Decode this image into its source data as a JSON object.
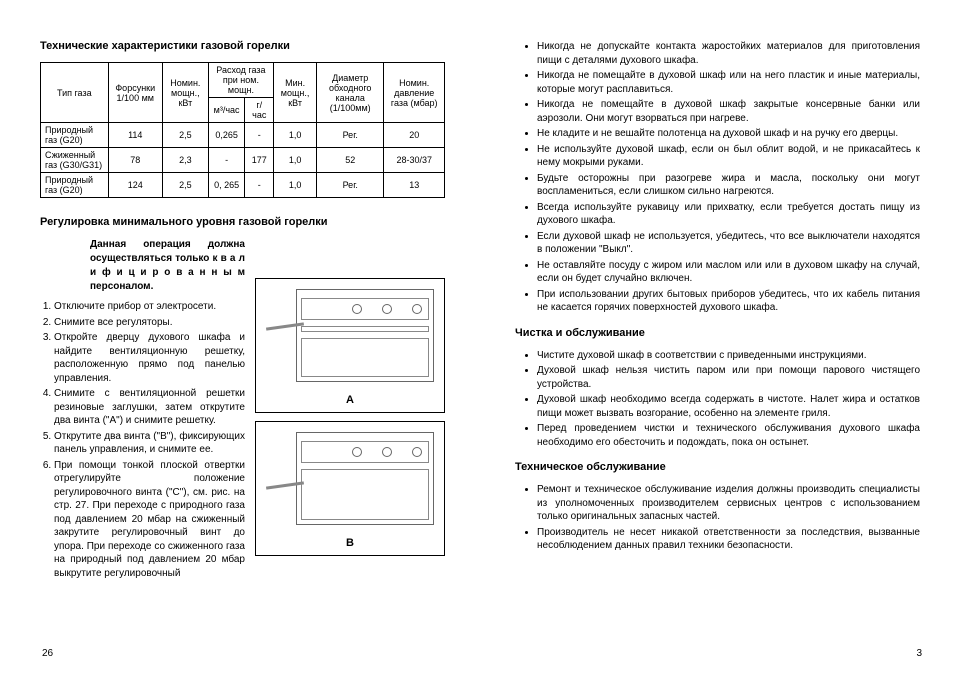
{
  "left": {
    "title1": "Технические характеристики газовой горелки",
    "table": {
      "headers": {
        "gasType": "Тип газа",
        "nozzle": "Форсунки 1/100 мм",
        "nomPower": "Номин. мощн., кВт",
        "consump": "Расход газа при ном. мощн.",
        "consump_m3": "м³/час",
        "consump_g": "г/час",
        "minPower": "Мин. мощн., кВт",
        "bypass": "Диаметр обходного канала (1/100мм)",
        "nomPressure": "Номин. давление газа (мбар)"
      },
      "rows": [
        {
          "gas": "Природный газ (G20)",
          "nozzle": "114",
          "nom": "2,5",
          "m3": "0,265",
          "g": "-",
          "min": "1,0",
          "bypass": "Рег.",
          "press": "20"
        },
        {
          "gas": "Сжиженный газ (G30/G31)",
          "nozzle": "78",
          "nom": "2,3",
          "m3": "-",
          "g": "177",
          "min": "1,0",
          "bypass": "52",
          "press": "28-30/37"
        },
        {
          "gas": "Природный газ (G20)",
          "nozzle": "124",
          "nom": "2,5",
          "m3": "0, 265",
          "g": "-",
          "min": "1,0",
          "bypass": "Рег.",
          "press": "13"
        }
      ]
    },
    "title2": "Регулировка минимального уровня газовой горелки",
    "boldIntro": "Данная операция должна осуществляться только к в а л и ф и ц и р о в а н н ы м персоналом.",
    "steps": [
      "Отключите прибор от электросети.",
      "Снимите все регуляторы.",
      "Откройте дверцу духового шкафа и найдите вентиляционную решетку, расположенную прямо под панелью управления.",
      "Снимите с вентиляционной решетки резиновые заглушки, затем открутите два винта (\"A\") и снимите решетку.",
      "Открутите два винта (\"B\"), фиксирующих панель управления, и снимите ее.",
      "При помощи тонкой плоской отвертки отрегулируйте положение регулировочного винта (\"C\"), см. рис. на стр. 27. При переходе с природного газа под давлением 20 мбар на сжиженный закрутите регулировочный винт до упора. При переходе со сжиженного газа на природный под давлением 20 мбар выкрутите регулировочный"
    ],
    "figA": "A",
    "figB": "B",
    "pageNum": "26"
  },
  "right": {
    "warnings": [
      "Никогда не допускайте контакта жаростойких материалов для приготовления пищи с деталями духового шкафа.",
      "Никогда не помещайте в духовой шкаф или на него пластик и иные материалы, которые могут расплавиться.",
      "Никогда не помещайте в духовой шкаф закрытые консервные банки или аэрозоли. Они могут взорваться при нагреве.",
      "Не кладите и не вешайте полотенца на духовой шкаф и на ручку его дверцы.",
      "Не используйте духовой шкаф, если он был облит водой, и не прикасайтесь к нему мокрыми руками.",
      "Будьте осторожны при разогреве жира и масла, поскольку они могут воспламениться, если слишком сильно нагреются.",
      "Всегда используйте рукавицу или прихватку, если требуется достать пищу из духового шкафа.",
      "Если духовой шкаф не используется, убедитесь, что все выключатели находятся в положении \"Выкл\".",
      "Не оставляйте посуду с жиром или маслом или или в духовом шкафу на случай, если он будет случайно включен.",
      "При использовании других бытовых приборов убедитесь, что их кабель питания не касается горячих поверхностей духового шкафа."
    ],
    "title2": "Чистка и обслуживание",
    "clean": [
      "Чистите духовой шкаф в соответствии с приведенными инструкциями.",
      "Духовой шкаф нельзя чистить паром или при помощи парового чистящего устройства.",
      "Духовой шкаф необходимо всегда содержать в чистоте. Налет жира и остатков пищи может вызвать возгорание, особенно на элементе гриля.",
      "Перед проведением чистки и технического обслуживания духового шкафа необходимо его обесточить и подождать, пока он остынет."
    ],
    "title3": "Техническое обслуживание",
    "service": [
      "Ремонт и техническое обслуживание изделия должны производить специалисты из уполномоченных производителем сервисных центров с использованием только оригинальных запасных частей.",
      "Производитель не несет никакой ответственности за последствия, вызванные несоблюдением данных правил техники безопасности."
    ],
    "pageNum": "3"
  }
}
